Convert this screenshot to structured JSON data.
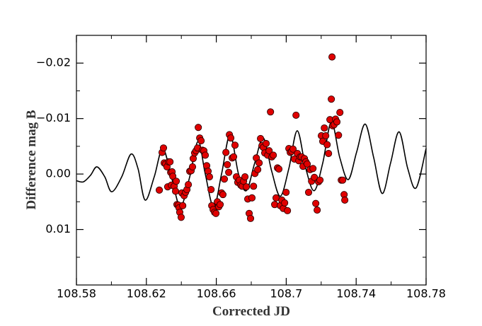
{
  "chart_data": {
    "type": "scatter",
    "x_label": "Corrected JD",
    "y_label": "Difference mag B",
    "xlim": [
      108.58,
      108.78
    ],
    "ylim": [
      0.02,
      -0.025
    ],
    "xticks": [
      108.58,
      108.62,
      108.66,
      108.7,
      108.74,
      108.78
    ],
    "xticks_minor": [
      108.6,
      108.64,
      108.68,
      108.72,
      108.76
    ],
    "yticks": [
      {
        "value": -0.02,
        "label": "−0.02"
      },
      {
        "value": -0.01,
        "label": "−0.01"
      },
      {
        "value": 0,
        "label": "0.00"
      },
      0.01
    ],
    "yticks_minor": [
      -0.025,
      -0.015,
      -0.005,
      0.005,
      0.015,
      0.02
    ],
    "line": {
      "color": "#000000",
      "x": [
        108.58,
        108.584,
        108.5881,
        108.5917,
        108.5962,
        108.6002,
        108.6059,
        108.6112,
        108.6152,
        108.6193,
        108.6245,
        108.6294,
        108.6347,
        108.6395,
        108.6448,
        108.6496,
        108.6537,
        108.6585,
        108.663,
        108.6679,
        108.6727,
        108.6772,
        108.682,
        108.6869,
        108.6917,
        108.6966,
        108.7015,
        108.7063,
        108.7112,
        108.716,
        108.7209,
        108.7258,
        108.7306,
        108.7355,
        108.7403,
        108.7452,
        108.75,
        108.7549,
        108.7597,
        108.7646,
        108.7695,
        108.7743,
        108.78
      ],
      "values": [
        0.0012,
        0.0014,
        0.0002,
        -0.0013,
        0.0005,
        0.0032,
        0.0005,
        -0.0036,
        -0.001,
        0.0047,
        0.0005,
        -0.0046,
        0.001,
        0.0059,
        0.0005,
        -0.0059,
        0,
        0.006,
        0,
        -0.0071,
        0,
        0.003,
        -0.002,
        -0.0065,
        -0.0005,
        0.004,
        -0.001,
        -0.0078,
        -0.001,
        0.003,
        -0.002,
        -0.0094,
        -0.003,
        0.001,
        -0.004,
        -0.009,
        -0.003,
        0.0035,
        -0.002,
        -0.0076,
        -0.001,
        0.0025,
        -0.0046
      ]
    },
    "points": {
      "color": "#e00000",
      "edge_color": "#300000",
      "x": [
        108.6274,
        108.629,
        108.6298,
        108.6302,
        108.631,
        108.6318,
        108.6327,
        108.6322,
        108.6335,
        108.6339,
        108.6343,
        108.6347,
        108.6351,
        108.6359,
        108.6367,
        108.6371,
        108.6375,
        108.6383,
        108.6387,
        108.6391,
        108.6399,
        108.6403,
        108.6408,
        108.6416,
        108.6424,
        108.6432,
        108.644,
        108.6448,
        108.6456,
        108.6464,
        108.6468,
        108.6476,
        108.6484,
        108.6493,
        108.6497,
        108.6505,
        108.6513,
        108.6521,
        108.6529,
        108.6537,
        108.6545,
        108.6553,
        108.6561,
        108.657,
        108.6574,
        108.6582,
        108.659,
        108.6598,
        108.6606,
        108.6614,
        108.6622,
        108.663,
        108.6638,
        108.6646,
        108.6655,
        108.6663,
        108.6671,
        108.6675,
        108.6683,
        108.6691,
        108.6699,
        108.6707,
        108.6715,
        108.6723,
        108.6732,
        108.674,
        108.6748,
        108.6756,
        108.6764,
        108.6772,
        108.678,
        108.6788,
        108.6796,
        108.6804,
        108.6813,
        108.6821,
        108.6829,
        108.6837,
        108.6845,
        108.6853,
        108.6861,
        108.6869,
        108.6877,
        108.6885,
        108.6894,
        108.6902,
        108.691,
        108.6918,
        108.6926,
        108.6934,
        108.6942,
        108.695,
        108.6958,
        108.6966,
        108.6975,
        108.6983,
        108.6991,
        108.6999,
        108.7007,
        108.7015,
        108.7023,
        108.7031,
        108.7039,
        108.7047,
        108.7056,
        108.7064,
        108.7072,
        108.708,
        108.7088,
        108.7096,
        108.7104,
        108.7112,
        108.712,
        108.7128,
        108.7137,
        108.7145,
        108.7153,
        108.7161,
        108.7169,
        108.7177,
        108.7185,
        108.7193,
        108.7201,
        108.7209,
        108.7218,
        108.7226,
        108.7234,
        108.7242,
        108.725,
        108.7258,
        108.7262,
        108.7266,
        108.7274,
        108.7282,
        108.729,
        108.7299,
        108.7307,
        108.7315,
        108.7323,
        108.7331,
        108.7335
      ],
      "values": [
        0.0029,
        -0.0039,
        -0.0047,
        -0.002,
        -0.0018,
        -0.0013,
        -0.0022,
        0.0023,
        -0.0022,
        -0.0003,
        0.002,
        -0.0004,
        0.0004,
        0.0022,
        0.0031,
        0.0013,
        0.0055,
        0.0056,
        0.0061,
        0.0069,
        0.0078,
        0.0034,
        0.0057,
        0.0039,
        0.0033,
        0.0028,
        0.0019,
        -0.0005,
        -0.0006,
        -0.0013,
        -0.0028,
        -0.0038,
        -0.0042,
        -0.0047,
        -0.0084,
        -0.0065,
        -0.006,
        -0.0043,
        -0.0042,
        -0.0034,
        -0.0015,
        -0.0005,
        0.0005,
        0.0028,
        0.0057,
        0.0064,
        0.0069,
        0.0071,
        0.005,
        0.0059,
        0.0055,
        0.0034,
        0.0037,
        0.0009,
        -0.0039,
        -0.0017,
        -0.0003,
        -0.0071,
        -0.0065,
        -0.0029,
        -0.0031,
        -0.0052,
        0.0005,
        0.0015,
        0.0011,
        0.002,
        0.0022,
        0.0013,
        0.0005,
        0.0023,
        0.0045,
        0.0071,
        0.008,
        0.0043,
        0.0022,
        -0.0001,
        -0.0029,
        -0.0008,
        -0.002,
        -0.0064,
        -0.0051,
        -0.0048,
        -0.0038,
        -0.0055,
        -0.0034,
        -0.0042,
        -0.0112,
        -0.0031,
        -0.0034,
        0.0055,
        0.0043,
        -0.0011,
        -0.0009,
        0.0057,
        0.0047,
        0.0062,
        0.0052,
        0.0033,
        0.0066,
        -0.0046,
        -0.0039,
        -0.0041,
        -0.0045,
        -0.0027,
        -0.0106,
        -0.0037,
        -0.0024,
        -0.0031,
        -0.0031,
        -0.0014,
        -0.0028,
        -0.0022,
        -0.0018,
        0.0033,
        -0.0008,
        0.0013,
        -0.001,
        0.0006,
        0.0053,
        0.0065,
        0.0014,
        0.0011,
        -0.0069,
        -0.0059,
        -0.0083,
        -0.0069,
        -0.0053,
        -0.0037,
        -0.0098,
        -0.0135,
        -0.0211,
        -0.0087,
        -0.0089,
        -0.0099,
        -0.0094,
        -0.007,
        -0.0111,
        0.0011,
        0.0011,
        0.0037,
        0.0047
      ]
    }
  }
}
